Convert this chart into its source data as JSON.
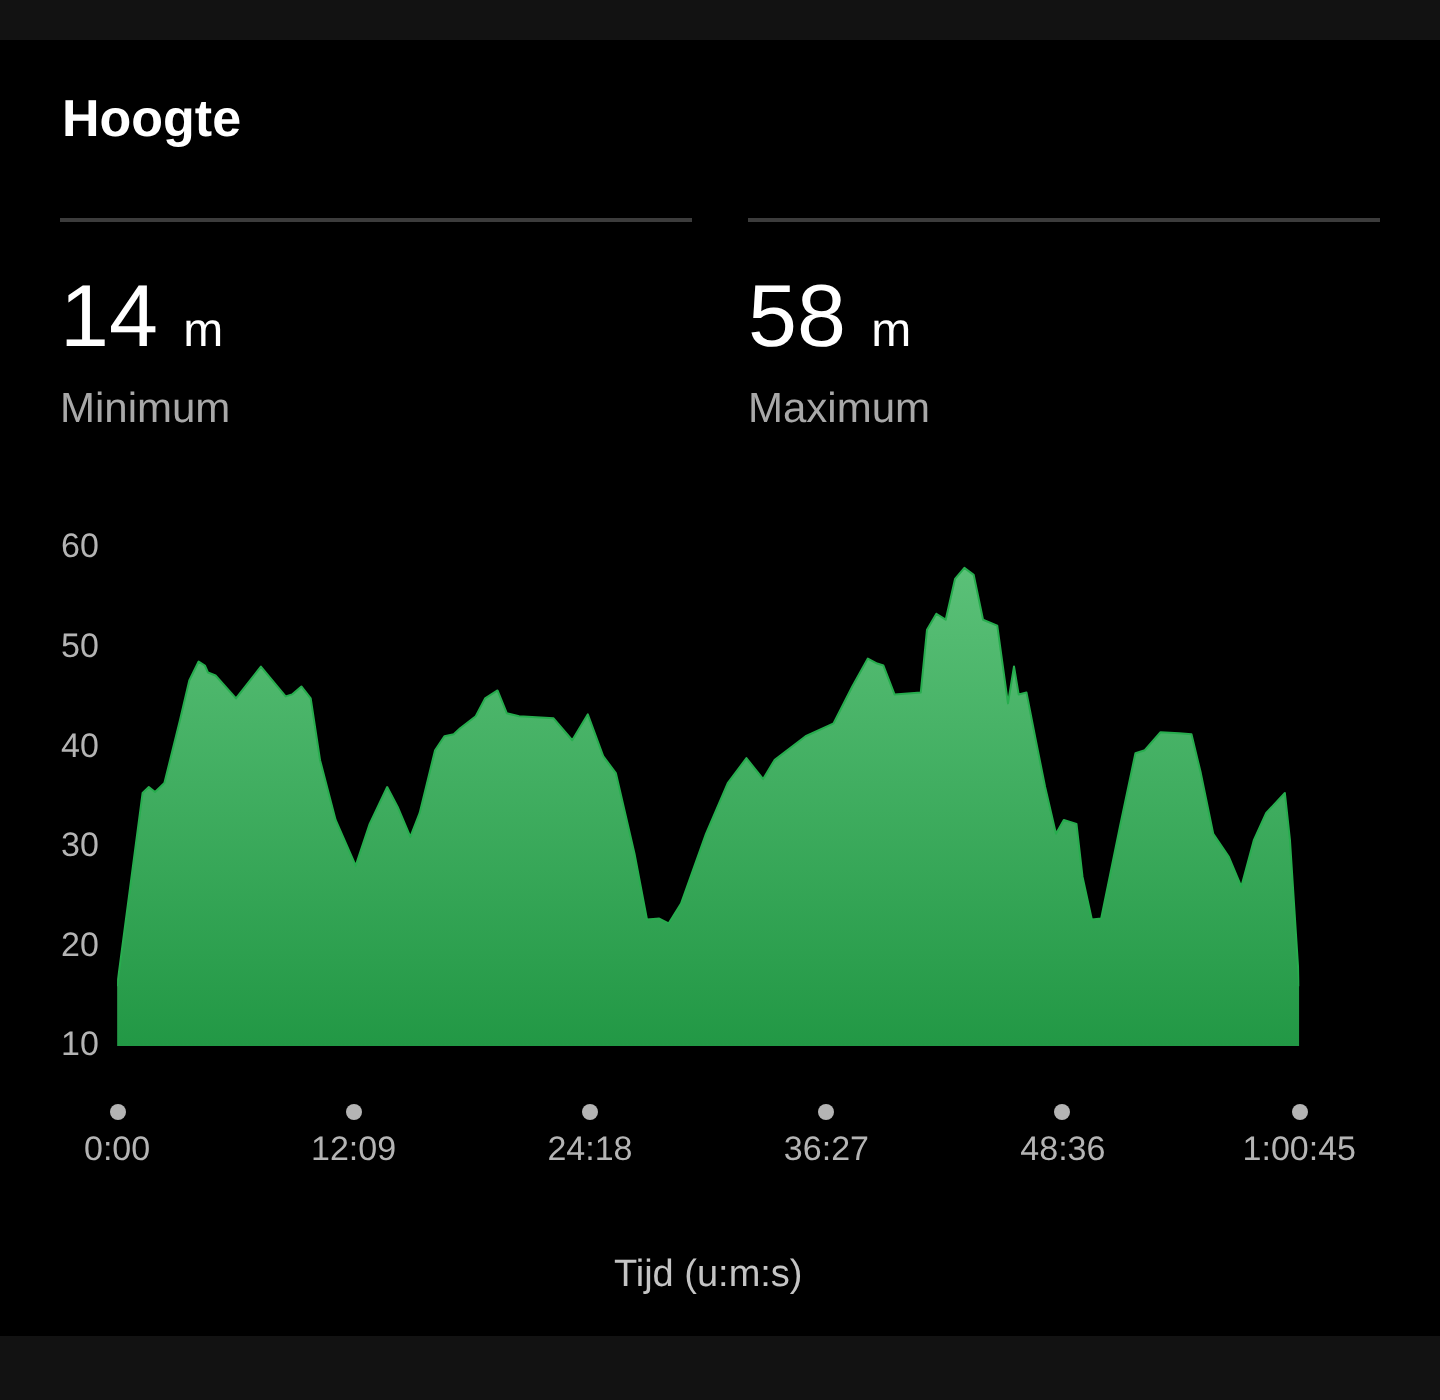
{
  "chart_data": {
    "type": "area",
    "title": "Hoogte",
    "annotations": [
      "14 m",
      "Minimum",
      "58 m",
      "Maximum"
    ],
    "xlabel": "Tijd (u:m:s)",
    "x": [
      0,
      1.31,
      1.63,
      1.95,
      2.43,
      3.23,
      3.71,
      4.19,
      4.51,
      4.67,
      5.06,
      6.11,
      7.39,
      8.66,
      8.99,
      9.47,
      9.95,
      10.43,
      11.23,
      12.26,
      12.98,
      13.88,
      14.42,
      15.07,
      15.55,
      16.34,
      16.82,
      17.3,
      17.63,
      18.43,
      18.91,
      19.55,
      20.03,
      20.66,
      22.43,
      23.39,
      24.19,
      24.98,
      25.63,
      26.59,
      27.23,
      27.86,
      28.34,
      28.98,
      30.26,
      31.38,
      32.34,
      33.2,
      33.78,
      35.38,
      36.82,
      37.78,
      38.58,
      39.06,
      39.38,
      39.95,
      41.3,
      41.62,
      42.1,
      42.58,
      43.06,
      43.54,
      44.02,
      44.5,
      45.23,
      45.78,
      46.09,
      46.33,
      46.73,
      47.21,
      47.69,
      48.25,
      48.65,
      49.3,
      49.61,
      50.09,
      50.57,
      51.53,
      52.33,
      52.81,
      53.62,
      54.58,
      55.21,
      55.69,
      56.33,
      57.13,
      57.77,
      58.42,
      59.05,
      60.01,
      60.27,
      60.75
    ],
    "values": [
      16,
      35.4,
      36,
      35.5,
      36.4,
      42.7,
      46.7,
      48.6,
      48.2,
      47.5,
      47.2,
      44.9,
      48.1,
      45.1,
      45.3,
      46.1,
      44.9,
      38.7,
      32.7,
      28.1,
      32.3,
      36,
      34,
      31,
      33.4,
      39.7,
      41.1,
      41.3,
      41.9,
      43.1,
      44.9,
      45.7,
      43.4,
      43.1,
      42.9,
      40.7,
      43.3,
      39.1,
      37.4,
      29.3,
      22.7,
      22.8,
      22.3,
      24.3,
      31.3,
      36.4,
      38.9,
      36.8,
      38.7,
      41.1,
      42.4,
      46.1,
      48.9,
      48.4,
      48.2,
      45.3,
      45.5,
      51.8,
      53.4,
      52.8,
      56.9,
      58,
      57.3,
      52.8,
      52.2,
      44.4,
      48.1,
      45.3,
      45.5,
      40.7,
      36,
      31.3,
      32.7,
      32.3,
      27,
      22.7,
      22.8,
      32,
      39.4,
      39.7,
      41.5,
      41.4,
      41.3,
      37.4,
      31.3,
      29,
      26,
      30.7,
      33.4,
      35.4,
      30.7,
      16
    ],
    "color": "#27ad4e",
    "xlim": [
      0,
      60.75
    ],
    "xticks": [
      {
        "value": 0,
        "label": "0:00"
      },
      {
        "value": 12.15,
        "label": "12:09"
      },
      {
        "value": 24.3,
        "label": "24:18"
      },
      {
        "value": 36.45,
        "label": "36:27"
      },
      {
        "value": 48.6,
        "label": "48:36"
      },
      {
        "value": 60.75,
        "label": "1:00:45"
      }
    ],
    "ylim": [
      10,
      60
    ],
    "yticks": [
      10,
      20,
      30,
      40,
      50,
      60
    ],
    "grid": false,
    "legend": false,
    "marker": "none"
  }
}
